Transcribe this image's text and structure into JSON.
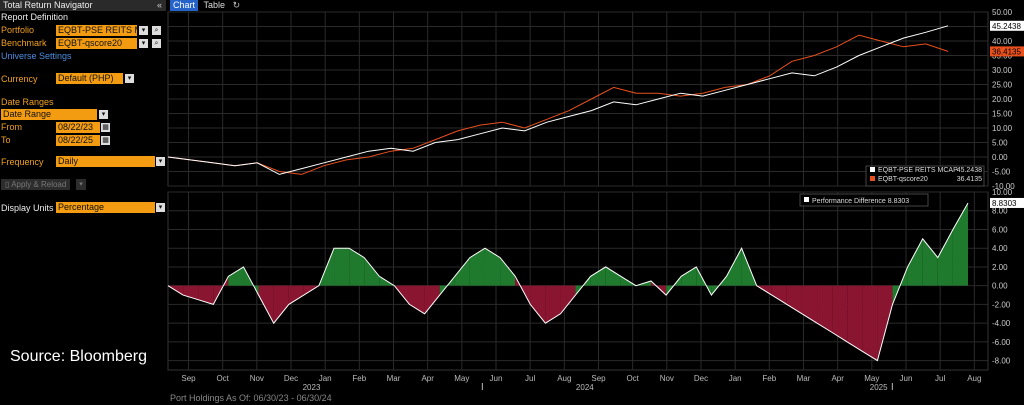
{
  "panel": {
    "title": "Total Return Navigator",
    "collapse_icon": "double-chevron-left-icon",
    "report_definition": "Report Definition",
    "portfolio_label": "Portfolio",
    "portfolio_value": "EQBT-PSE REITS M",
    "benchmark_label": "Benchmark",
    "benchmark_value": "EQBT-qscore20",
    "universe_settings": "Universe Settings",
    "currency_label": "Currency",
    "currency_value": "Default (PHP)",
    "date_ranges_label": "Date Ranges",
    "date_range_value": "Date Range",
    "from_label": "From",
    "from_value": "08/22/23",
    "to_label": "To",
    "to_value": "08/22/25",
    "frequency_label": "Frequency",
    "frequency_value": "Daily",
    "apply_label": "Apply & Reload",
    "display_units_label": "Display Units",
    "display_units_value": "Percentage",
    "source": "Source: Bloomberg"
  },
  "tabs": {
    "chart": "Chart",
    "table": "Table"
  },
  "footer": "Port Holdings As Of: 06/30/23 - 06/30/24",
  "colors": {
    "portfolio": "#ffffff",
    "benchmark": "#e8501e",
    "positive": "#1f7a2e",
    "negative": "#8a1530",
    "orange": "#f39c12"
  },
  "chart_data": [
    {
      "type": "line",
      "ylim": [
        -10,
        50
      ],
      "yticks": [
        "50.00",
        "45.00",
        "40.00",
        "35.00",
        "30.00",
        "25.00",
        "20.00",
        "15.00",
        "10.00",
        "5.00",
        "0.00",
        "-5.00",
        "-10.00"
      ],
      "series": [
        {
          "name": "EQBT-PSE REITS MCAP",
          "last": "45.2438",
          "values": [
            0,
            -1,
            -2,
            -3,
            -2,
            -6,
            -4,
            -2,
            0,
            2,
            3,
            2,
            5,
            6,
            8,
            10,
            9,
            12,
            14,
            16,
            19,
            18,
            20,
            22,
            21,
            23,
            25,
            27,
            29,
            28,
            31,
            35,
            38,
            41,
            43,
            45.24
          ]
        },
        {
          "name": "EQBT-qscore20",
          "last": "36.4135",
          "values": [
            0,
            -1,
            -2,
            -3,
            -2,
            -5,
            -6,
            -3,
            -1,
            0,
            2,
            3,
            6,
            9,
            11,
            12,
            10,
            13,
            16,
            20,
            24,
            22,
            22,
            21,
            22,
            24,
            25,
            28,
            33,
            35,
            38,
            42,
            40,
            38,
            39,
            36.41
          ]
        }
      ]
    },
    {
      "type": "area",
      "ylim": [
        -9,
        10
      ],
      "yticks": [
        "10.00",
        "8.00",
        "6.00",
        "4.00",
        "2.00",
        "0.00",
        "-2.00",
        "-4.00",
        "-6.00",
        "-8.00"
      ],
      "series": [
        {
          "name": "Performance Difference",
          "last": "8.8303",
          "values": [
            0,
            -1,
            -1.5,
            -2,
            1,
            2,
            -1,
            -4,
            -2,
            -1,
            0,
            4,
            4,
            3,
            1,
            0,
            -2,
            -3,
            -1,
            1,
            3,
            4,
            3,
            1,
            -2,
            -4,
            -3,
            -1,
            1,
            2,
            1,
            0,
            0.5,
            -1,
            1,
            2,
            -1,
            1,
            4,
            0,
            -1,
            -2,
            -3,
            -4,
            -5,
            -6,
            -7,
            -8,
            -2,
            2,
            5,
            3,
            6,
            8.83
          ]
        }
      ]
    }
  ],
  "x_axis": {
    "months": [
      "Sep",
      "Oct",
      "Nov",
      "Dec",
      "Jan",
      "Feb",
      "Mar",
      "Apr",
      "May",
      "Jun",
      "Jul",
      "Aug",
      "Sep",
      "Oct",
      "Nov",
      "Dec",
      "Jan",
      "Feb",
      "Mar",
      "Apr",
      "May",
      "Jun",
      "Jul",
      "Aug"
    ],
    "years": [
      "2023",
      "2024",
      "2025"
    ]
  },
  "legend_top": [
    {
      "label": "EQBT-PSE REITS MCAP",
      "value": "45.2438"
    },
    {
      "label": "EQBT-qscore20",
      "value": "36.4135"
    }
  ],
  "legend_bottom": {
    "label": "Performance Difference",
    "value": "8.8303"
  }
}
